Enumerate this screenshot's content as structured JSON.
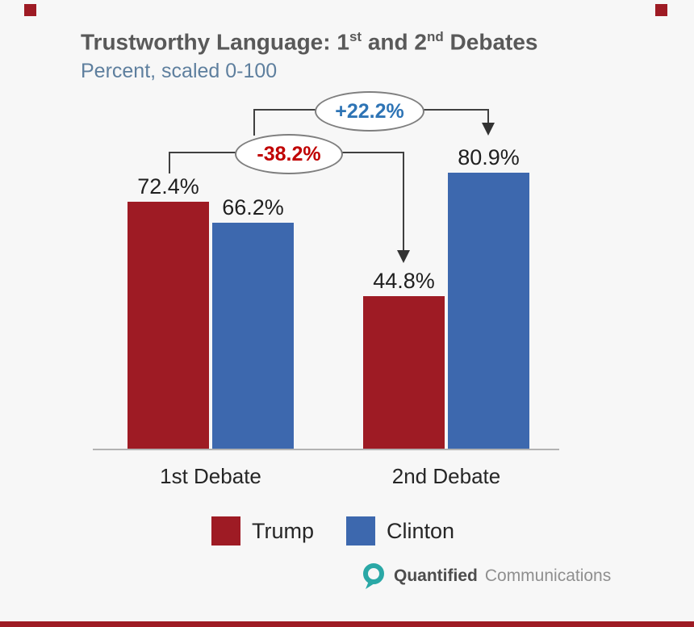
{
  "page": {
    "background": "#f7f7f7",
    "accent_red": "#9e1b24"
  },
  "header": {
    "title": {
      "part1": "Trustworthy Language: 1",
      "sup1": "st",
      "part2": " and 2",
      "sup2": "nd",
      "part3": " Debates"
    },
    "subtitle": "Percent, scaled 0-100"
  },
  "chart_data": {
    "type": "bar",
    "title": "Trustworthy Language: 1st and 2nd Debates",
    "subtitle": "Percent, scaled 0-100",
    "categories": [
      "1st Debate",
      "2nd Debate"
    ],
    "series": [
      {
        "name": "Trump",
        "color": "#9e1b24",
        "values": [
          72.4,
          44.8
        ]
      },
      {
        "name": "Clinton",
        "color": "#3d68ae",
        "values": [
          66.2,
          80.9
        ]
      }
    ],
    "value_labels": [
      [
        "72.4%",
        "66.2%"
      ],
      [
        "44.8%",
        "80.9%"
      ]
    ],
    "ylim": [
      0,
      100
    ],
    "grid": false,
    "legend_position": "bottom",
    "annotations": [
      {
        "label": "+22.2%",
        "series": "Clinton",
        "color": "#2e74b5"
      },
      {
        "label": "-38.2%",
        "series": "Trump",
        "color": "#c00000"
      }
    ]
  },
  "footer": {
    "brand_primary": "Quantified",
    "brand_secondary": "Communications",
    "logo_color": "#2aa8a6"
  }
}
